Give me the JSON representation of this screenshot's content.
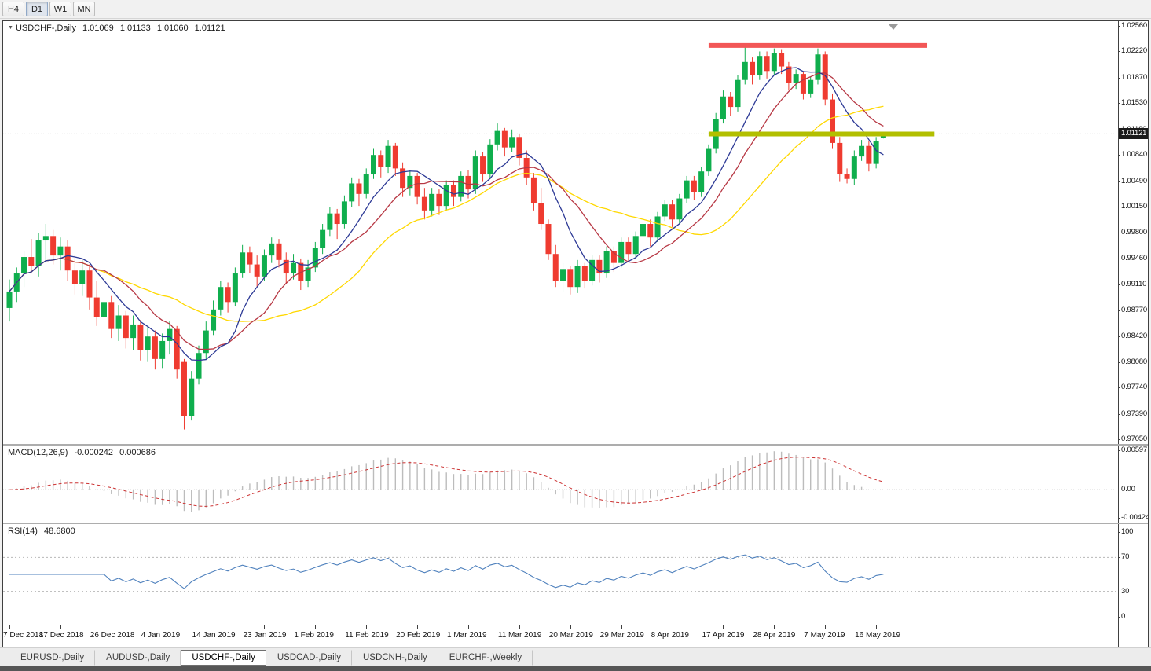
{
  "toolbar": {
    "timeframes": [
      {
        "label": "H4",
        "active": false
      },
      {
        "label": "D1",
        "active": true
      },
      {
        "label": "W1",
        "active": false
      },
      {
        "label": "MN",
        "active": false
      }
    ]
  },
  "chart": {
    "title": {
      "symbol": "USDCHF-,Daily",
      "open": "1.01069",
      "high": "1.01133",
      "low": "1.01060",
      "close": "1.01121"
    },
    "current_price": "1.01121"
  },
  "chart_data": {
    "type": "candlestick",
    "symbol": "USDCHF-",
    "timeframe": "Daily",
    "bull_color": "#0fae4d",
    "bear_color": "#ef3b30",
    "y_axis": {
      "min": 0.9705,
      "max": 1.0256,
      "labels": [
        "1.02560",
        "1.02220",
        "1.01870",
        "1.01530",
        "1.01180",
        "1.00840",
        "1.00490",
        "1.00150",
        "0.99800",
        "0.99460",
        "0.99110",
        "0.98770",
        "0.98420",
        "0.98080",
        "0.97740",
        "0.97390",
        "0.97050"
      ]
    },
    "x_axis": {
      "labels": [
        {
          "label": "7 Dec 2018",
          "i": 0
        },
        {
          "label": "17 Dec 2018",
          "i": 7
        },
        {
          "label": "26 Dec 2018",
          "i": 14
        },
        {
          "label": "4 Jan 2019",
          "i": 21
        },
        {
          "label": "14 Jan 2019",
          "i": 28
        },
        {
          "label": "23 Jan 2019",
          "i": 35
        },
        {
          "label": "1 Feb 2019",
          "i": 42
        },
        {
          "label": "11 Feb 2019",
          "i": 49
        },
        {
          "label": "20 Feb 2019",
          "i": 56
        },
        {
          "label": "1 Mar 2019",
          "i": 63
        },
        {
          "label": "11 Mar 2019",
          "i": 70
        },
        {
          "label": "20 Mar 2019",
          "i": 77
        },
        {
          "label": "29 Mar 2019",
          "i": 84
        },
        {
          "label": "8 Apr 2019",
          "i": 91
        },
        {
          "label": "17 Apr 2019",
          "i": 98
        },
        {
          "label": "28 Apr 2019",
          "i": 105
        },
        {
          "label": "7 May 2019",
          "i": 112
        },
        {
          "label": "16 May 2019",
          "i": 119
        }
      ]
    },
    "moving_averages": [
      {
        "name": "ma-slow",
        "period": 25,
        "color": "#ffd800"
      },
      {
        "name": "ma-mid",
        "period": 13,
        "color": "#b73844"
      },
      {
        "name": "ma-fast",
        "period": 8,
        "color": "#2d3a96"
      }
    ],
    "levels": [
      {
        "name": "resistance-line",
        "price": 1.023,
        "color": "#f25656",
        "width": 6,
        "from_i": 96,
        "to_i": 126
      },
      {
        "name": "support-line",
        "price": 1.0112,
        "color": "#b2bf00",
        "width": 6,
        "from_i": 96,
        "to_i": 127
      }
    ],
    "candles": [
      [
        0.988,
        0.9918,
        0.9862,
        0.9902
      ],
      [
        0.9902,
        0.9934,
        0.9888,
        0.9926
      ],
      [
        0.9926,
        0.9956,
        0.9908,
        0.9948
      ],
      [
        0.9948,
        0.9972,
        0.9926,
        0.9936
      ],
      [
        0.9936,
        0.998,
        0.9922,
        0.997
      ],
      [
        0.997,
        0.9992,
        0.9944,
        0.9976
      ],
      [
        0.9976,
        0.9984,
        0.9938,
        0.995
      ],
      [
        0.995,
        0.9974,
        0.993,
        0.9962
      ],
      [
        0.9962,
        0.997,
        0.9916,
        0.993
      ],
      [
        0.993,
        0.995,
        0.9898,
        0.9912
      ],
      [
        0.9912,
        0.9944,
        0.9896,
        0.993
      ],
      [
        0.993,
        0.9938,
        0.9878,
        0.9894
      ],
      [
        0.9894,
        0.9916,
        0.9856,
        0.9868
      ],
      [
        0.9868,
        0.9904,
        0.9852,
        0.9888
      ],
      [
        0.9888,
        0.9896,
        0.984,
        0.9852
      ],
      [
        0.9852,
        0.9884,
        0.9836,
        0.987
      ],
      [
        0.987,
        0.9876,
        0.9826,
        0.984
      ],
      [
        0.984,
        0.987,
        0.9824,
        0.9858
      ],
      [
        0.9858,
        0.9864,
        0.981,
        0.9824
      ],
      [
        0.9824,
        0.9856,
        0.9808,
        0.9842
      ],
      [
        0.9842,
        0.985,
        0.9798,
        0.9812
      ],
      [
        0.9812,
        0.9846,
        0.98,
        0.9836
      ],
      [
        0.9836,
        0.9862,
        0.9818,
        0.9852
      ],
      [
        0.9852,
        0.9856,
        0.9786,
        0.9798
      ],
      [
        0.9808,
        0.9812,
        0.9718,
        0.9736
      ],
      [
        0.9736,
        0.9796,
        0.973,
        0.9786
      ],
      [
        0.9786,
        0.983,
        0.9778,
        0.982
      ],
      [
        0.982,
        0.9862,
        0.9812,
        0.985
      ],
      [
        0.985,
        0.989,
        0.9844,
        0.9878
      ],
      [
        0.9878,
        0.9916,
        0.987,
        0.9908
      ],
      [
        0.9908,
        0.9914,
        0.9874,
        0.9888
      ],
      [
        0.9888,
        0.9934,
        0.9882,
        0.9926
      ],
      [
        0.9926,
        0.9964,
        0.992,
        0.9954
      ],
      [
        0.9954,
        0.9962,
        0.9926,
        0.9938
      ],
      [
        0.9938,
        0.995,
        0.9908,
        0.9922
      ],
      [
        0.9922,
        0.9958,
        0.9916,
        0.995
      ],
      [
        0.995,
        0.9974,
        0.994,
        0.9966
      ],
      [
        0.9966,
        0.9972,
        0.9934,
        0.9944
      ],
      [
        0.9944,
        0.9954,
        0.9912,
        0.9926
      ],
      [
        0.9926,
        0.9952,
        0.9918,
        0.994
      ],
      [
        0.994,
        0.9946,
        0.9904,
        0.9916
      ],
      [
        0.9916,
        0.9944,
        0.9908,
        0.9934
      ],
      [
        0.9934,
        0.9968,
        0.9928,
        0.996
      ],
      [
        0.996,
        0.9992,
        0.9952,
        0.9984
      ],
      [
        0.9984,
        1.0014,
        0.9976,
        1.0006
      ],
      [
        1.0006,
        1.0012,
        0.9972,
        0.9992
      ],
      [
        0.9992,
        1.003,
        0.9986,
        1.0022
      ],
      [
        1.0022,
        1.0054,
        1.0014,
        1.0046
      ],
      [
        1.0046,
        1.0052,
        1.0016,
        1.0032
      ],
      [
        1.0032,
        1.0066,
        1.0026,
        1.0058
      ],
      [
        1.0058,
        1.0092,
        1.0052,
        1.0084
      ],
      [
        1.0084,
        1.009,
        1.0054,
        1.0068
      ],
      [
        1.0068,
        1.0104,
        1.006,
        1.0096
      ],
      [
        1.0096,
        1.01,
        1.0056,
        1.0066
      ],
      [
        1.0066,
        1.0074,
        1.0028,
        1.004
      ],
      [
        1.004,
        1.0064,
        1.003,
        1.0056
      ],
      [
        1.0056,
        1.006,
        1.0018,
        1.0028
      ],
      [
        1.0028,
        1.004,
        0.9998,
        1.001
      ],
      [
        1.001,
        1.004,
        1.0002,
        1.0032
      ],
      [
        1.0032,
        1.0038,
        1.0004,
        1.0016
      ],
      [
        1.0016,
        1.005,
        1.001,
        1.0044
      ],
      [
        1.0044,
        1.005,
        1.0016,
        1.0028
      ],
      [
        1.0028,
        1.0062,
        1.0022,
        1.0056
      ],
      [
        1.0056,
        1.0064,
        1.0026,
        1.0038
      ],
      [
        1.0038,
        1.009,
        1.0032,
        1.0082
      ],
      [
        1.0082,
        1.0088,
        1.0048,
        1.0058
      ],
      [
        1.0058,
        1.0105,
        1.0052,
        1.0098
      ],
      [
        1.0098,
        1.0126,
        1.009,
        1.0116
      ],
      [
        1.0116,
        1.012,
        1.0082,
        1.0094
      ],
      [
        1.0094,
        1.0118,
        1.0088,
        1.0108
      ],
      [
        1.0108,
        1.0112,
        1.007,
        1.008
      ],
      [
        1.008,
        1.009,
        1.0044,
        1.0054
      ],
      [
        1.0054,
        1.006,
        1.001,
        1.002
      ],
      [
        1.002,
        1.004,
        0.9984,
        0.9992
      ],
      [
        0.9992,
        0.9998,
        0.9944,
        0.9952
      ],
      [
        0.9952,
        0.9964,
        0.9908,
        0.9916
      ],
      [
        0.9916,
        0.994,
        0.9902,
        0.9932
      ],
      [
        0.9932,
        0.9936,
        0.9898,
        0.9908
      ],
      [
        0.9908,
        0.9944,
        0.99,
        0.9936
      ],
      [
        0.9936,
        0.994,
        0.9906,
        0.9916
      ],
      [
        0.9916,
        0.995,
        0.991,
        0.9944
      ],
      [
        0.9944,
        0.995,
        0.9914,
        0.9926
      ],
      [
        0.9926,
        0.9962,
        0.992,
        0.9956
      ],
      [
        0.9956,
        0.9962,
        0.9928,
        0.994
      ],
      [
        0.994,
        0.9974,
        0.9934,
        0.9968
      ],
      [
        0.9968,
        0.9974,
        0.9942,
        0.9952
      ],
      [
        0.9952,
        0.9982,
        0.9946,
        0.9976
      ],
      [
        0.9976,
        0.9998,
        0.997,
        0.9992
      ],
      [
        0.9992,
        0.9998,
        0.9962,
        0.9974
      ],
      [
        0.9974,
        1.0008,
        0.9968,
        1.0002
      ],
      [
        1.0002,
        1.0024,
        0.9996,
        1.0018
      ],
      [
        1.0018,
        1.0024,
        0.9988,
        0.9998
      ],
      [
        0.9998,
        1.0032,
        0.9992,
        1.0026
      ],
      [
        1.0026,
        1.0056,
        1.002,
        1.005
      ],
      [
        1.005,
        1.0056,
        1.0024,
        1.0034
      ],
      [
        1.0034,
        1.0068,
        1.0028,
        1.0062
      ],
      [
        1.0062,
        1.0098,
        1.0056,
        1.0092
      ],
      [
        1.0092,
        1.014,
        1.0086,
        1.0132
      ],
      [
        1.0132,
        1.017,
        1.0126,
        1.0162
      ],
      [
        1.0162,
        1.0168,
        1.0136,
        1.0148
      ],
      [
        1.0148,
        1.019,
        1.0142,
        1.0184
      ],
      [
        1.0184,
        1.0228,
        1.0178,
        1.0208
      ],
      [
        1.0208,
        1.0214,
        1.0178,
        1.019
      ],
      [
        1.019,
        1.0222,
        1.0184,
        1.0216
      ],
      [
        1.0216,
        1.0222,
        1.0186,
        1.0196
      ],
      [
        1.0196,
        1.0226,
        1.019,
        1.022
      ],
      [
        1.022,
        1.0224,
        1.0192,
        1.0202
      ],
      [
        1.0202,
        1.0208,
        1.017,
        1.018
      ],
      [
        1.018,
        1.0198,
        1.0172,
        1.0192
      ],
      [
        1.0192,
        1.0196,
        1.0158,
        1.0166
      ],
      [
        1.0166,
        1.0188,
        1.016,
        1.0184
      ],
      [
        1.0184,
        1.0226,
        1.0178,
        1.0218
      ],
      [
        1.0218,
        1.0222,
        1.015,
        1.0158
      ],
      [
        1.0158,
        1.0166,
        1.0092,
        1.01
      ],
      [
        1.01,
        1.0108,
        1.0048,
        1.0058
      ],
      [
        1.0058,
        1.0066,
        1.0046,
        1.0052
      ],
      [
        1.0052,
        1.009,
        1.0044,
        1.0082
      ],
      [
        1.0082,
        1.0104,
        1.0076,
        1.0096
      ],
      [
        1.0096,
        1.0102,
        1.0062,
        1.0072
      ],
      [
        1.0072,
        1.0108,
        1.0066,
        1.0102
      ],
      [
        1.01069,
        1.01133,
        1.0106,
        1.01121
      ]
    ]
  },
  "macd": {
    "label": "MACD(12,26,9)",
    "value_main": "-0.000242",
    "value_signal": "0.000686",
    "fast": 12,
    "slow": 26,
    "signal": 9,
    "hist_color": "#bcbcbc",
    "signal_color": "#cc3333",
    "scale": {
      "max": 0.00597,
      "min": -0.004243,
      "labels": [
        {
          "text": "0.00597",
          "v": 0.00597
        },
        {
          "text": "0.00",
          "v": 0
        },
        {
          "text": "-0.004243",
          "v": -0.004243
        }
      ]
    }
  },
  "rsi": {
    "label": "RSI(14)",
    "value": "48.6800",
    "period": 14,
    "line_color": "#4f81bd",
    "levels": [
      70,
      30
    ],
    "scale": {
      "labels": [
        {
          "text": "100",
          "v": 100
        },
        {
          "text": "70",
          "v": 70
        },
        {
          "text": "30",
          "v": 30
        },
        {
          "text": "0",
          "v": 0
        }
      ]
    }
  },
  "tabs": [
    {
      "label": "EURUSD-,Daily",
      "active": false
    },
    {
      "label": "AUDUSD-,Daily",
      "active": false
    },
    {
      "label": "USDCHF-,Daily",
      "active": true
    },
    {
      "label": "USDCAD-,Daily",
      "active": false
    },
    {
      "label": "USDCNH-,Daily",
      "active": false
    },
    {
      "label": "EURCHF-,Weekly",
      "active": false
    }
  ]
}
